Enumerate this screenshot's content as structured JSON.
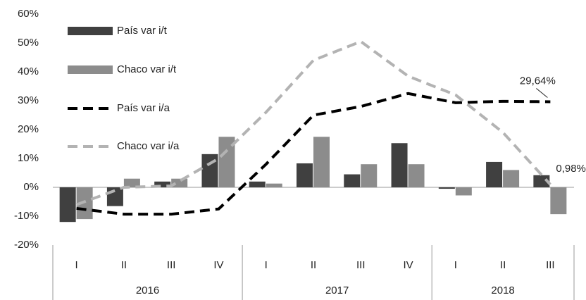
{
  "chart_data": {
    "type": "bar_line",
    "groups": [
      {
        "name": "2016",
        "categories": [
          "I",
          "II",
          "III",
          "IV"
        ]
      },
      {
        "name": "2017",
        "categories": [
          "I",
          "II",
          "III",
          "IV"
        ]
      },
      {
        "name": "2018",
        "categories": [
          "I",
          "II",
          "III"
        ]
      }
    ],
    "series": [
      {
        "name": "País var i/t",
        "kind": "bar",
        "color": "#404040",
        "values": [
          -12,
          -6.5,
          2,
          11.5,
          2,
          8.3,
          4.5,
          15.3,
          -0.5,
          8.8,
          4.2
        ]
      },
      {
        "name": "Chaco var i/t",
        "kind": "bar",
        "color": "#8c8c8c",
        "values": [
          -11,
          3,
          3,
          17.5,
          1.3,
          17.5,
          8,
          8,
          -2.8,
          6,
          -9.3
        ]
      },
      {
        "name": "País var i/a",
        "kind": "line",
        "color": "#000000",
        "values": [
          -7.3,
          -9.3,
          -9.3,
          -7.5,
          8,
          25,
          28,
          32.5,
          29.3,
          29.8,
          29.64
        ],
        "value_labels": [
          null,
          null,
          null,
          null,
          null,
          null,
          null,
          null,
          null,
          null,
          "29,64%"
        ]
      },
      {
        "name": "Chaco var i/a",
        "kind": "line",
        "color": "#b3b3b3",
        "values": [
          -6,
          0,
          0.5,
          10,
          26,
          44,
          50.5,
          38.5,
          32,
          19,
          0.98
        ],
        "value_labels": [
          null,
          null,
          null,
          null,
          null,
          null,
          null,
          null,
          null,
          null,
          "0,98%"
        ]
      }
    ],
    "ylim": [
      -20,
      60
    ],
    "yticks": [
      {
        "value": -20,
        "label": "-20%"
      },
      {
        "value": -10,
        "label": "-10%"
      },
      {
        "value": 0,
        "label": "0%"
      },
      {
        "value": 10,
        "label": "10%"
      },
      {
        "value": 20,
        "label": "20%"
      },
      {
        "value": 30,
        "label": "30%"
      },
      {
        "value": 40,
        "label": "40%"
      },
      {
        "value": 50,
        "label": "50%"
      },
      {
        "value": 60,
        "label": "60%"
      }
    ],
    "legend": "top-left"
  }
}
